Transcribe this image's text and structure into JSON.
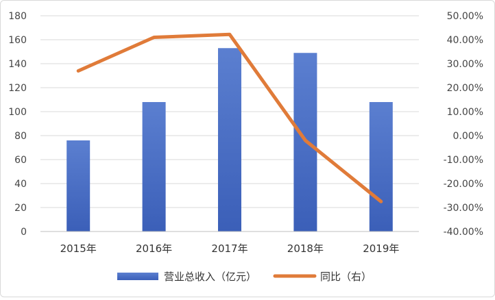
{
  "chart_data": {
    "type": "bar",
    "categories": [
      "2015年",
      "2016年",
      "2017年",
      "2018年",
      "2019年"
    ],
    "series": [
      {
        "name": "营业总收入（亿元）",
        "type": "bar",
        "axis": "left",
        "color": "#4f72c4",
        "values": [
          76,
          108,
          153,
          149,
          108
        ]
      },
      {
        "name": "同比（右）",
        "type": "line",
        "axis": "right",
        "color": "#e07b39",
        "values": [
          27.0,
          41.0,
          42.2,
          -2.0,
          -27.5
        ]
      }
    ],
    "y_left": {
      "range": [
        0,
        180
      ],
      "ticks": [
        "0",
        "20",
        "40",
        "60",
        "80",
        "100",
        "120",
        "140",
        "160",
        "180"
      ]
    },
    "y_right": {
      "range": [
        -40,
        50
      ],
      "unit": "%",
      "ticks": [
        "-40.00%",
        "-30.00%",
        "-20.00%",
        "-10.00%",
        "0.00%",
        "10.00%",
        "20.00%",
        "30.00%",
        "40.00%",
        "50.00%"
      ]
    },
    "grid": true,
    "legend_position": "bottom"
  }
}
